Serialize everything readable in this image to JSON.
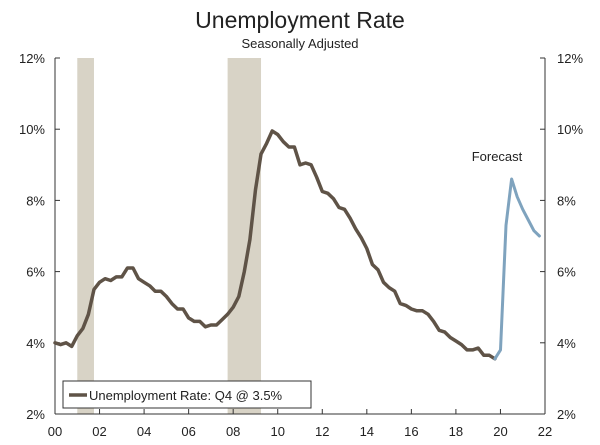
{
  "chart_data": {
    "type": "line",
    "title": "Unemployment Rate",
    "subtitle": "Seasonally Adjusted",
    "xlabel": "",
    "ylabel": "",
    "x_tick_labels": [
      "00",
      "02",
      "04",
      "06",
      "08",
      "10",
      "12",
      "14",
      "16",
      "18",
      "20",
      "22"
    ],
    "y_tick_labels": [
      "2%",
      "4%",
      "6%",
      "8%",
      "10%",
      "12%"
    ],
    "xlim": [
      2000.0,
      2022.0
    ],
    "ylim": [
      2,
      12
    ],
    "y_ticks": [
      2,
      4,
      6,
      8,
      10,
      12
    ],
    "x_ticks": [
      2000,
      2002,
      2004,
      2006,
      2008,
      2010,
      2012,
      2014,
      2016,
      2018,
      2020,
      2022
    ],
    "grid": false,
    "legend_position": "bottom-left",
    "legend_text": "Unemployment Rate: Q4 @ 3.5%",
    "annotation": "Forecast",
    "recessions": [
      [
        2001.0,
        2001.75
      ],
      [
        2007.75,
        2009.25
      ]
    ],
    "series": [
      {
        "name": "Unemployment Rate",
        "color": "#5f5347",
        "x": [
          2000.0,
          2000.25,
          2000.5,
          2000.75,
          2001.0,
          2001.25,
          2001.5,
          2001.75,
          2002.0,
          2002.25,
          2002.5,
          2002.75,
          2003.0,
          2003.25,
          2003.5,
          2003.75,
          2004.0,
          2004.25,
          2004.5,
          2004.75,
          2005.0,
          2005.25,
          2005.5,
          2005.75,
          2006.0,
          2006.25,
          2006.5,
          2006.75,
          2007.0,
          2007.25,
          2007.5,
          2007.75,
          2008.0,
          2008.25,
          2008.5,
          2008.75,
          2009.0,
          2009.25,
          2009.5,
          2009.75,
          2010.0,
          2010.25,
          2010.5,
          2010.75,
          2011.0,
          2011.25,
          2011.5,
          2011.75,
          2012.0,
          2012.25,
          2012.5,
          2012.75,
          2013.0,
          2013.25,
          2013.5,
          2013.75,
          2014.0,
          2014.25,
          2014.5,
          2014.75,
          2015.0,
          2015.25,
          2015.5,
          2015.75,
          2016.0,
          2016.25,
          2016.5,
          2016.75,
          2017.0,
          2017.25,
          2017.5,
          2017.75,
          2018.0,
          2018.25,
          2018.5,
          2018.75,
          2019.0,
          2019.25,
          2019.5,
          2019.75
        ],
        "values": [
          4.0,
          3.95,
          4.0,
          3.9,
          4.2,
          4.4,
          4.8,
          5.5,
          5.7,
          5.8,
          5.75,
          5.85,
          5.85,
          6.1,
          6.1,
          5.8,
          5.7,
          5.6,
          5.45,
          5.45,
          5.3,
          5.1,
          4.95,
          4.95,
          4.7,
          4.6,
          4.6,
          4.45,
          4.5,
          4.5,
          4.65,
          4.8,
          5.0,
          5.3,
          6.0,
          6.9,
          8.3,
          9.3,
          9.6,
          9.95,
          9.85,
          9.65,
          9.5,
          9.5,
          9.0,
          9.05,
          9.0,
          8.65,
          8.25,
          8.2,
          8.05,
          7.8,
          7.75,
          7.5,
          7.2,
          6.95,
          6.65,
          6.2,
          6.05,
          5.7,
          5.55,
          5.45,
          5.1,
          5.05,
          4.95,
          4.9,
          4.9,
          4.8,
          4.6,
          4.35,
          4.3,
          4.15,
          4.05,
          3.95,
          3.8,
          3.8,
          3.85,
          3.65,
          3.65,
          3.55
        ]
      },
      {
        "name": "Forecast",
        "color": "#7fa3be",
        "x": [
          2019.75,
          2020.0,
          2020.25,
          2020.5,
          2020.75,
          2021.0,
          2021.25,
          2021.5,
          2021.75
        ],
        "values": [
          3.55,
          3.8,
          7.3,
          8.6,
          8.1,
          7.75,
          7.45,
          7.15,
          7.0
        ]
      }
    ]
  }
}
